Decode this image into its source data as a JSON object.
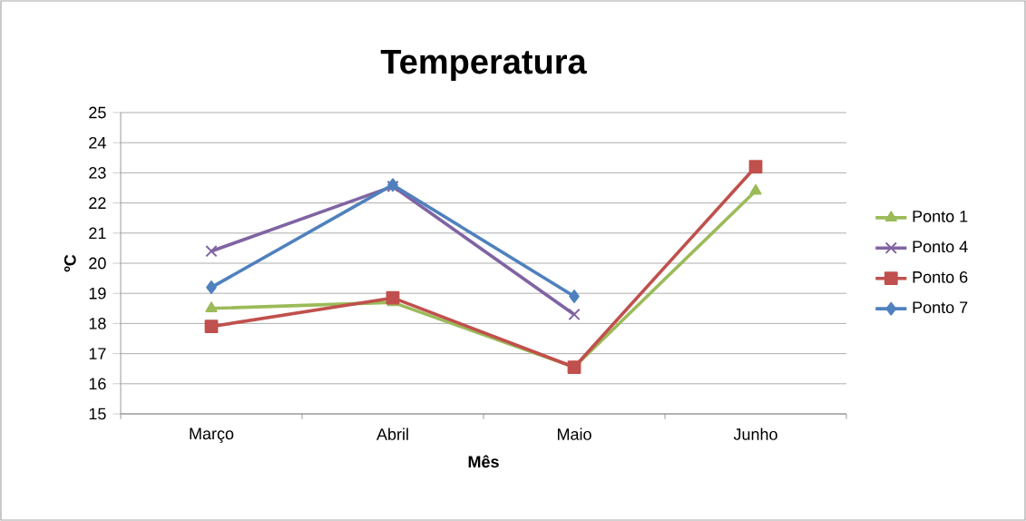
{
  "chart_data": {
    "type": "line",
    "title": "Temperatura",
    "xlabel": "Mês",
    "ylabel": "ºC",
    "categories": [
      "Março",
      "Abril",
      "Maio",
      "Junho"
    ],
    "series": [
      {
        "name": "Ponto 1",
        "color": "#9bbb59",
        "marker": "triangle",
        "values": [
          18.5,
          18.7,
          16.55,
          22.4
        ]
      },
      {
        "name": "Ponto 4",
        "color": "#8064a2",
        "marker": "cross",
        "values": [
          20.4,
          22.55,
          18.3,
          null
        ]
      },
      {
        "name": "Ponto 6",
        "color": "#c0504d",
        "marker": "square",
        "values": [
          17.9,
          18.85,
          16.55,
          23.2
        ]
      },
      {
        "name": "Ponto 7",
        "color": "#4f81bd",
        "marker": "diamond",
        "values": [
          19.2,
          22.6,
          18.9,
          null
        ]
      }
    ],
    "ylim": [
      15,
      25
    ],
    "yticks": [
      15,
      16,
      17,
      18,
      19,
      20,
      21,
      22,
      23,
      24,
      25
    ],
    "grid": "y",
    "legend": "right",
    "line_style": "solid"
  }
}
